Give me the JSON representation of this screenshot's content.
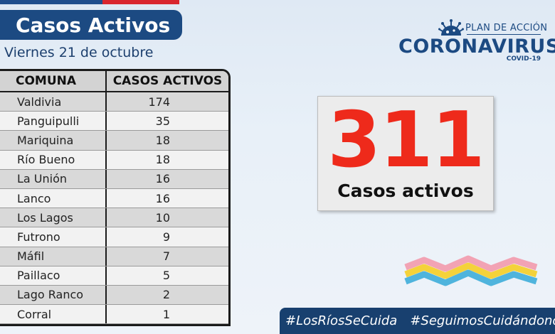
{
  "header": {
    "title": "Casos Activos",
    "date": "Viernes 21 de octubre"
  },
  "table": {
    "col_comuna": "COMUNA",
    "col_casos": "CASOS ACTIVOS",
    "rows": [
      {
        "comuna": "Valdivia",
        "casos": "174"
      },
      {
        "comuna": "Panguipulli",
        "casos": "35"
      },
      {
        "comuna": "Mariquina",
        "casos": "18"
      },
      {
        "comuna": "Río Bueno",
        "casos": "18"
      },
      {
        "comuna": "La Unión",
        "casos": "16"
      },
      {
        "comuna": "Lanco",
        "casos": "16"
      },
      {
        "comuna": "Los Lagos",
        "casos": "10"
      },
      {
        "comuna": "Futrono",
        "casos": "9"
      },
      {
        "comuna": "Máfil",
        "casos": "7"
      },
      {
        "comuna": "Paillaco",
        "casos": "5"
      },
      {
        "comuna": "Lago Ranco",
        "casos": "2"
      },
      {
        "comuna": "Corral",
        "casos": "1"
      }
    ]
  },
  "logo": {
    "plan": "PLAN DE ACCIÓN",
    "name": "CORONAVIRUS",
    "sub": "COVID-19",
    "icon": "virus-icon"
  },
  "counter": {
    "value": "311",
    "label": "Casos activos"
  },
  "footer": {
    "hashtag_1": "#LosRíosSeCuida",
    "hashtag_2": "#SeguimosCuidándonos"
  },
  "colors": {
    "title_bg": "#1c4a82",
    "counter_number": "#ee2a1b",
    "footer_bg": "#18406f"
  }
}
